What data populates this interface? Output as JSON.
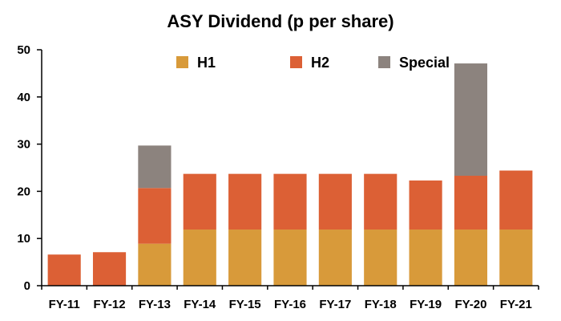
{
  "chart_data": {
    "type": "bar",
    "stacked": true,
    "title": "ASY Dividend (p per share)",
    "xlabel": "",
    "ylabel": "",
    "categories": [
      "FY-11",
      "FY-12",
      "FY-13",
      "FY-14",
      "FY-15",
      "FY-16",
      "FY-17",
      "FY-18",
      "FY-19",
      "FY-20",
      "FY-21"
    ],
    "ylim": [
      0,
      50
    ],
    "yticks": [
      0,
      10,
      20,
      30,
      40,
      50
    ],
    "grid": false,
    "legend_position": "top",
    "series": [
      {
        "name": "H1",
        "color": "#D89A3A",
        "values": [
          0,
          0,
          8.9,
          11.9,
          11.9,
          11.9,
          11.9,
          11.9,
          11.9,
          11.9,
          11.9
        ]
      },
      {
        "name": "H2",
        "color": "#DC6035",
        "values": [
          6.6,
          7.1,
          11.8,
          11.8,
          11.8,
          11.8,
          11.8,
          11.8,
          10.4,
          11.4,
          12.5
        ]
      },
      {
        "name": "Special",
        "color": "#8C837E",
        "values": [
          0,
          0,
          9.0,
          0,
          0,
          0,
          0,
          0,
          0,
          23.8,
          0
        ]
      }
    ]
  }
}
